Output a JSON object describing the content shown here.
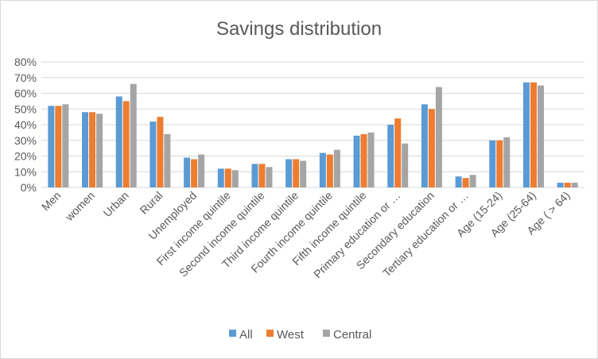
{
  "chart_data": {
    "type": "bar",
    "title": "Savings distribution",
    "xlabel": "",
    "ylabel": "",
    "ylim": [
      0,
      0.8
    ],
    "yticks": [
      "0%",
      "10%",
      "20%",
      "30%",
      "40%",
      "50%",
      "60%",
      "70%",
      "80%"
    ],
    "grid": true,
    "legend_position": "bottom",
    "categories": [
      "Men",
      "women",
      "Urban",
      "Rural",
      "Unemployed",
      "First income quintile",
      "Second income quintile",
      "Third income quintile",
      "Fourth income quintile",
      "Fifth income quintile",
      "Primary education or …",
      "Secondary education",
      "Tertiary education or …",
      "Age (15-24)",
      "Age (25-64)",
      "Age ( > 64)"
    ],
    "series": [
      {
        "name": "All",
        "color": "#5b9bd5",
        "values": [
          0.52,
          0.48,
          0.58,
          0.42,
          0.19,
          0.12,
          0.15,
          0.18,
          0.22,
          0.33,
          0.4,
          0.53,
          0.07,
          0.3,
          0.67,
          0.03
        ]
      },
      {
        "name": "West",
        "color": "#ed7d31",
        "values": [
          0.52,
          0.48,
          0.55,
          0.45,
          0.18,
          0.12,
          0.15,
          0.18,
          0.21,
          0.34,
          0.44,
          0.5,
          0.06,
          0.3,
          0.67,
          0.03
        ]
      },
      {
        "name": "Central",
        "color": "#a5a5a5",
        "values": [
          0.53,
          0.47,
          0.66,
          0.34,
          0.21,
          0.11,
          0.13,
          0.17,
          0.24,
          0.35,
          0.28,
          0.64,
          0.08,
          0.32,
          0.65,
          0.03
        ]
      }
    ]
  }
}
